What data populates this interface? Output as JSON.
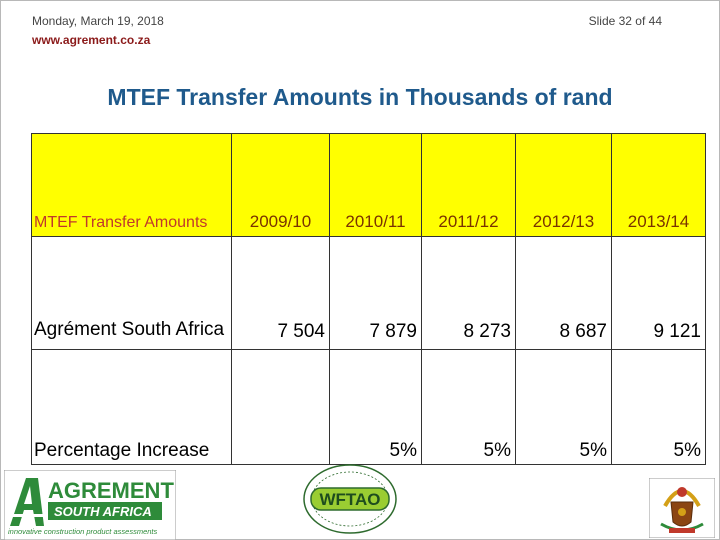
{
  "header": {
    "date": "Monday, March 19, 2018",
    "url": "www.agrement.co.za",
    "slide_number": "Slide 32 of 44"
  },
  "title": "MTEF Transfer Amounts in Thousands of rand",
  "table": {
    "header_label": "MTEF Transfer Amounts",
    "years": [
      "2009/10",
      "2010/11",
      "2011/12",
      "2012/13",
      "2013/14"
    ],
    "rows": [
      {
        "label": "Agrément South Africa",
        "values": [
          "7 504",
          "7 879",
          "8 273",
          "8 687",
          "9 121"
        ]
      },
      {
        "label": "Percentage Increase",
        "values": [
          "",
          "5%",
          "5%",
          "5%",
          "5%"
        ]
      }
    ]
  },
  "colors": {
    "title": "#1f5a8c",
    "header_fill": "#ffff00",
    "header_label": "#c0392b",
    "header_years": "#7a3300",
    "url": "#8b1a1a"
  },
  "logos": {
    "agrement": {
      "name": "AGREMENT",
      "sub": "SOUTH AFRICA",
      "tagline": "innovative construction product assessments"
    },
    "wftao": {
      "name": "WFTAO"
    }
  }
}
